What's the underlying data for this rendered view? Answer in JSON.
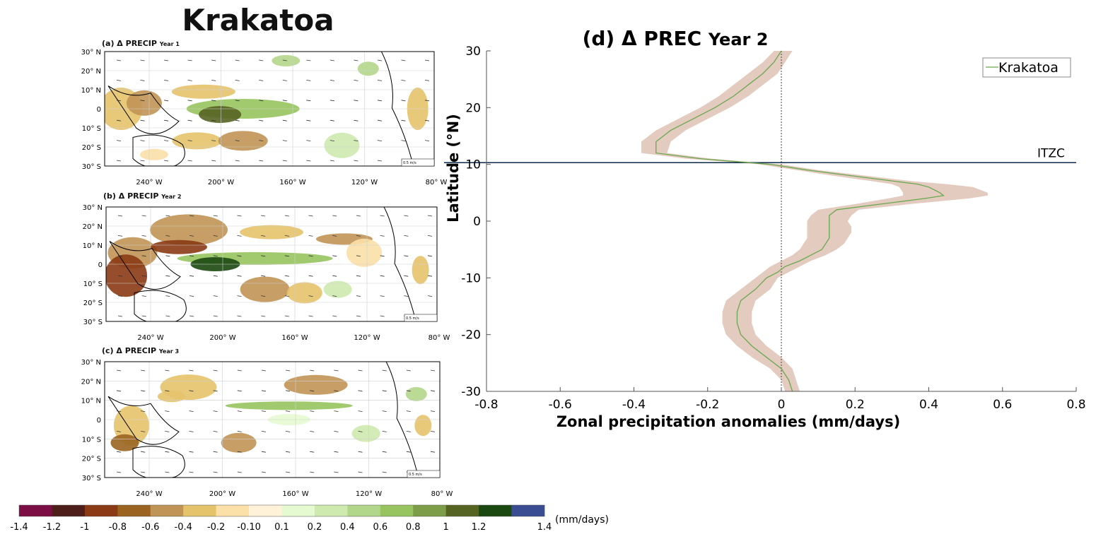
{
  "main_title": "Krakatoa",
  "maps": [
    {
      "title": "(a) Δ PRECIP",
      "year": "Year 1",
      "scale_label": "0.5 m/s"
    },
    {
      "title": "(b) Δ PRECIP",
      "year": "Year 2",
      "scale_label": "0.5 m/s"
    },
    {
      "title": "(c) Δ PRECIP",
      "year": "Year 3",
      "scale_label": "0.5 m/s"
    }
  ],
  "map_lat_labels": [
    "30° N",
    "20° N",
    "10° N",
    "0",
    "10° S",
    "20° S",
    "30° S"
  ],
  "map_lon_labels": [
    "240° W",
    "200° W",
    "160° W",
    "120° W",
    "80° W"
  ],
  "colorbar": {
    "unit": "(mm/days)",
    "colors": [
      "#7b0f45",
      "#4e1f1a",
      "#8a3a14",
      "#9a6420",
      "#c09455",
      "#e5c36b",
      "#fbe0a8",
      "#fff2d8",
      "#e6fad2",
      "#ceeaaf",
      "#b2d68a",
      "#97c45e",
      "#7d9d48",
      "#566422",
      "#1b4810",
      "#3a4d92"
    ],
    "tick_labels": [
      "-1.4",
      "-1.2",
      "-1",
      "-0.8",
      "-0.6",
      "-0.4",
      "-0.2",
      "-0.10",
      "0.1",
      "0.2",
      "0.4",
      "0.6",
      "0.8",
      "1",
      "1.2",
      "1.4"
    ]
  },
  "chart_data": {
    "type": "line",
    "title": "(d) Δ PREC",
    "title_suffix": "Year 2",
    "xlabel": "Zonal precipitation anomalies (mm/days)",
    "ylabel": "Latitude (°N)",
    "xlim": [
      -0.8,
      0.8
    ],
    "ylim": [
      -30,
      30
    ],
    "xticks": [
      -0.8,
      -0.6,
      -0.4,
      -0.2,
      0,
      0.2,
      0.4,
      0.6,
      0.8
    ],
    "yticks": [
      -30,
      -20,
      -10,
      0,
      10,
      20,
      30
    ],
    "grid": false,
    "legend": {
      "position": "top-right",
      "entries": [
        "Krakatoa"
      ]
    },
    "series": [
      {
        "name": "Krakatoa",
        "color": "#6aa84f",
        "band_color": "#e3cbbf",
        "lat": [
          30,
          28,
          26,
          24,
          22,
          20,
          18,
          16,
          14,
          12,
          11,
          10,
          9,
          8,
          7,
          6.5,
          6,
          5,
          4.5,
          4,
          3,
          2,
          1,
          0,
          -1,
          -2,
          -3,
          -4,
          -5,
          -6,
          -7,
          -8,
          -9,
          -10,
          -12,
          -14,
          -16,
          -18,
          -20,
          -22,
          -24,
          -26,
          -28,
          -30
        ],
        "mean": [
          0.0,
          -0.02,
          -0.05,
          -0.09,
          -0.13,
          -0.18,
          -0.24,
          -0.3,
          -0.34,
          -0.34,
          -0.22,
          -0.03,
          0.07,
          0.19,
          0.31,
          0.37,
          0.4,
          0.43,
          0.44,
          0.39,
          0.27,
          0.15,
          0.13,
          0.13,
          0.13,
          0.13,
          0.13,
          0.12,
          0.11,
          0.08,
          0.05,
          0.01,
          -0.01,
          -0.04,
          -0.07,
          -0.11,
          -0.12,
          -0.12,
          -0.11,
          -0.08,
          -0.04,
          0.0,
          0.02,
          0.03
        ],
        "upper": [
          0.03,
          0.01,
          -0.01,
          -0.05,
          -0.09,
          -0.14,
          -0.2,
          -0.26,
          -0.3,
          -0.31,
          -0.19,
          0.0,
          0.1,
          0.23,
          0.36,
          0.45,
          0.52,
          0.56,
          0.56,
          0.51,
          0.35,
          0.21,
          0.19,
          0.18,
          0.19,
          0.19,
          0.18,
          0.17,
          0.15,
          0.12,
          0.08,
          0.05,
          0.02,
          -0.01,
          -0.03,
          -0.07,
          -0.08,
          -0.08,
          -0.07,
          -0.04,
          0.0,
          0.03,
          0.04,
          0.05
        ],
        "lower": [
          -0.02,
          -0.05,
          -0.09,
          -0.13,
          -0.17,
          -0.22,
          -0.28,
          -0.34,
          -0.38,
          -0.38,
          -0.26,
          -0.06,
          0.04,
          0.14,
          0.25,
          0.3,
          0.32,
          0.33,
          0.33,
          0.29,
          0.2,
          0.1,
          0.08,
          0.07,
          0.07,
          0.07,
          0.07,
          0.06,
          0.05,
          0.03,
          0.0,
          -0.03,
          -0.05,
          -0.07,
          -0.11,
          -0.15,
          -0.16,
          -0.16,
          -0.15,
          -0.12,
          -0.08,
          -0.03,
          0.0,
          0.01
        ]
      }
    ],
    "annotations": [
      {
        "text": "ITZC",
        "y": 10.3,
        "type": "hline"
      }
    ],
    "reference_lines": [
      {
        "x": 0,
        "style": "dotted"
      }
    ]
  }
}
